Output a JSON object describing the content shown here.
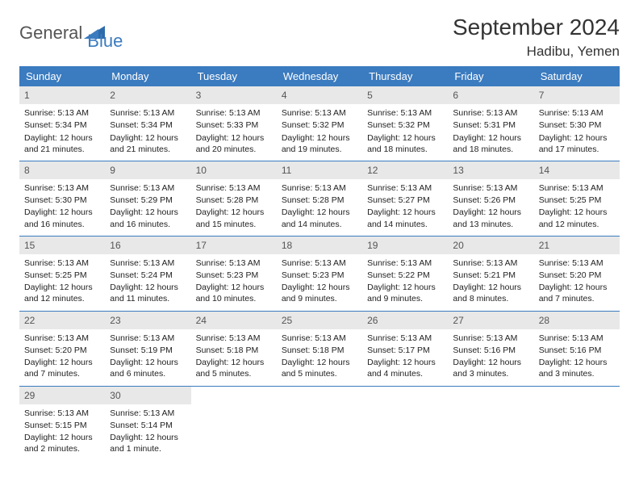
{
  "logo": {
    "part1": "General",
    "part2": "Blue"
  },
  "title": "September 2024",
  "location": "Hadibu, Yemen",
  "colors": {
    "header_blue": "#3b7bbf",
    "daynum_bg": "#e8e8e8",
    "text": "#333333",
    "logo_gray": "#555555",
    "logo_blue": "#3b7bbf"
  },
  "dow": [
    "Sunday",
    "Monday",
    "Tuesday",
    "Wednesday",
    "Thursday",
    "Friday",
    "Saturday"
  ],
  "weeks": [
    [
      {
        "n": "1",
        "sr": "5:13 AM",
        "ss": "5:34 PM",
        "dl": "12 hours and 21 minutes."
      },
      {
        "n": "2",
        "sr": "5:13 AM",
        "ss": "5:34 PM",
        "dl": "12 hours and 21 minutes."
      },
      {
        "n": "3",
        "sr": "5:13 AM",
        "ss": "5:33 PM",
        "dl": "12 hours and 20 minutes."
      },
      {
        "n": "4",
        "sr": "5:13 AM",
        "ss": "5:32 PM",
        "dl": "12 hours and 19 minutes."
      },
      {
        "n": "5",
        "sr": "5:13 AM",
        "ss": "5:32 PM",
        "dl": "12 hours and 18 minutes."
      },
      {
        "n": "6",
        "sr": "5:13 AM",
        "ss": "5:31 PM",
        "dl": "12 hours and 18 minutes."
      },
      {
        "n": "7",
        "sr": "5:13 AM",
        "ss": "5:30 PM",
        "dl": "12 hours and 17 minutes."
      }
    ],
    [
      {
        "n": "8",
        "sr": "5:13 AM",
        "ss": "5:30 PM",
        "dl": "12 hours and 16 minutes."
      },
      {
        "n": "9",
        "sr": "5:13 AM",
        "ss": "5:29 PM",
        "dl": "12 hours and 16 minutes."
      },
      {
        "n": "10",
        "sr": "5:13 AM",
        "ss": "5:28 PM",
        "dl": "12 hours and 15 minutes."
      },
      {
        "n": "11",
        "sr": "5:13 AM",
        "ss": "5:28 PM",
        "dl": "12 hours and 14 minutes."
      },
      {
        "n": "12",
        "sr": "5:13 AM",
        "ss": "5:27 PM",
        "dl": "12 hours and 14 minutes."
      },
      {
        "n": "13",
        "sr": "5:13 AM",
        "ss": "5:26 PM",
        "dl": "12 hours and 13 minutes."
      },
      {
        "n": "14",
        "sr": "5:13 AM",
        "ss": "5:25 PM",
        "dl": "12 hours and 12 minutes."
      }
    ],
    [
      {
        "n": "15",
        "sr": "5:13 AM",
        "ss": "5:25 PM",
        "dl": "12 hours and 12 minutes."
      },
      {
        "n": "16",
        "sr": "5:13 AM",
        "ss": "5:24 PM",
        "dl": "12 hours and 11 minutes."
      },
      {
        "n": "17",
        "sr": "5:13 AM",
        "ss": "5:23 PM",
        "dl": "12 hours and 10 minutes."
      },
      {
        "n": "18",
        "sr": "5:13 AM",
        "ss": "5:23 PM",
        "dl": "12 hours and 9 minutes."
      },
      {
        "n": "19",
        "sr": "5:13 AM",
        "ss": "5:22 PM",
        "dl": "12 hours and 9 minutes."
      },
      {
        "n": "20",
        "sr": "5:13 AM",
        "ss": "5:21 PM",
        "dl": "12 hours and 8 minutes."
      },
      {
        "n": "21",
        "sr": "5:13 AM",
        "ss": "5:20 PM",
        "dl": "12 hours and 7 minutes."
      }
    ],
    [
      {
        "n": "22",
        "sr": "5:13 AM",
        "ss": "5:20 PM",
        "dl": "12 hours and 7 minutes."
      },
      {
        "n": "23",
        "sr": "5:13 AM",
        "ss": "5:19 PM",
        "dl": "12 hours and 6 minutes."
      },
      {
        "n": "24",
        "sr": "5:13 AM",
        "ss": "5:18 PM",
        "dl": "12 hours and 5 minutes."
      },
      {
        "n": "25",
        "sr": "5:13 AM",
        "ss": "5:18 PM",
        "dl": "12 hours and 5 minutes."
      },
      {
        "n": "26",
        "sr": "5:13 AM",
        "ss": "5:17 PM",
        "dl": "12 hours and 4 minutes."
      },
      {
        "n": "27",
        "sr": "5:13 AM",
        "ss": "5:16 PM",
        "dl": "12 hours and 3 minutes."
      },
      {
        "n": "28",
        "sr": "5:13 AM",
        "ss": "5:16 PM",
        "dl": "12 hours and 3 minutes."
      }
    ],
    [
      {
        "n": "29",
        "sr": "5:13 AM",
        "ss": "5:15 PM",
        "dl": "12 hours and 2 minutes."
      },
      {
        "n": "30",
        "sr": "5:13 AM",
        "ss": "5:14 PM",
        "dl": "12 hours and 1 minute."
      },
      null,
      null,
      null,
      null,
      null
    ]
  ],
  "labels": {
    "sunrise": "Sunrise:",
    "sunset": "Sunset:",
    "daylight": "Daylight:"
  }
}
